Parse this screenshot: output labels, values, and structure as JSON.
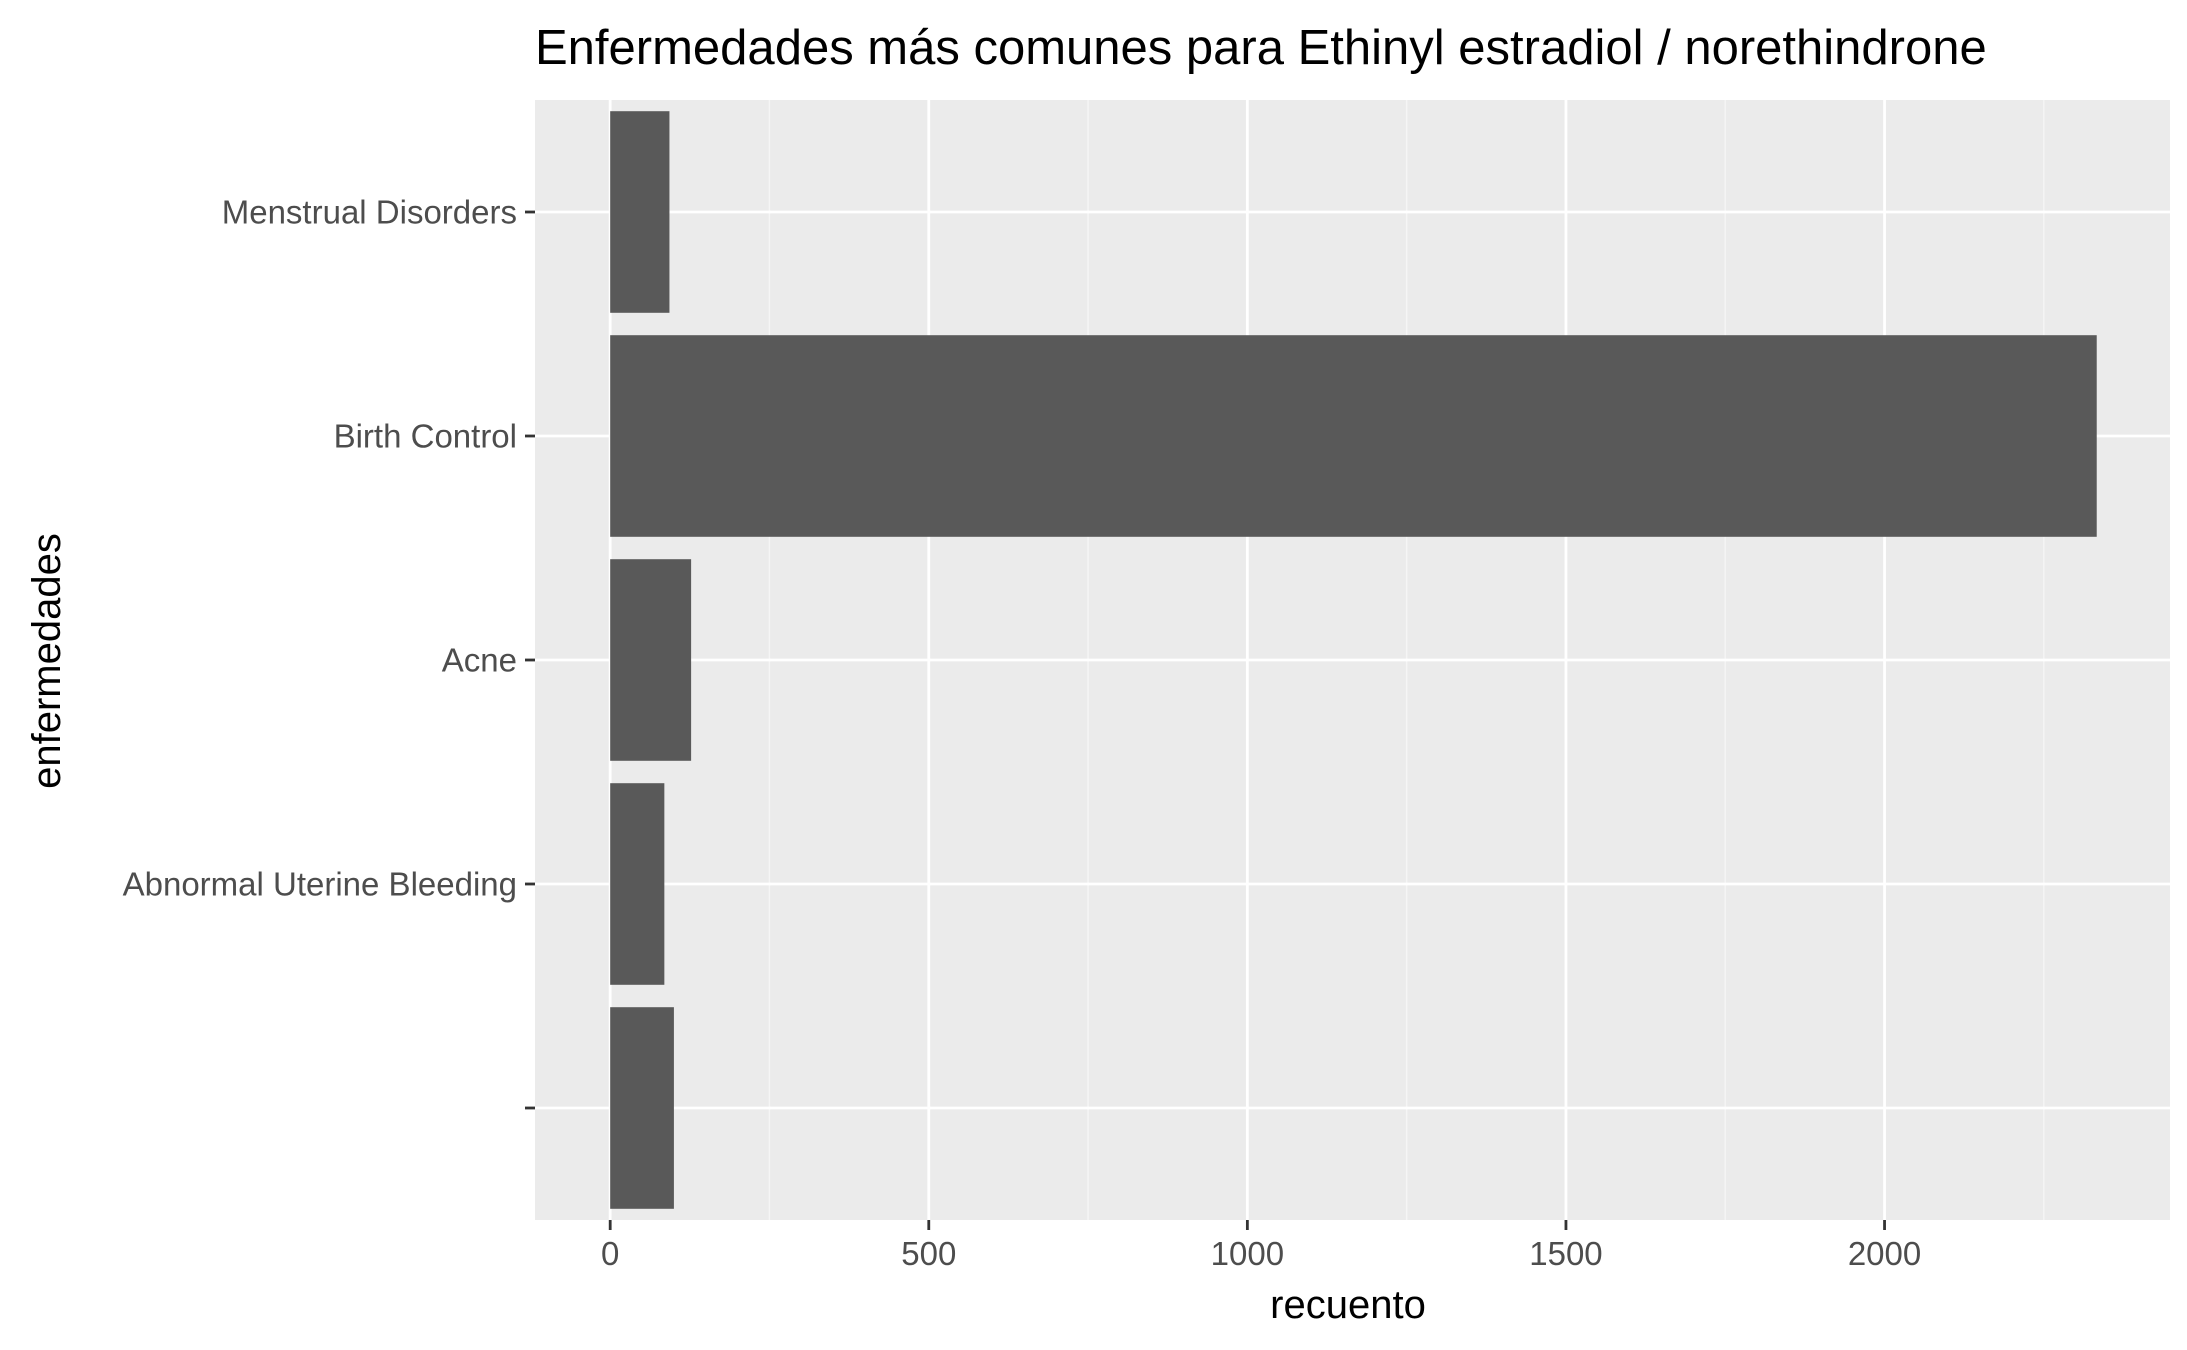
{
  "chart_data": {
    "type": "bar",
    "orientation": "horizontal",
    "title": "Enfermedades más comunes para Ethinyl estradiol / norethindrone",
    "xlabel": "recuento",
    "ylabel": "enfermedades",
    "categories": [
      "",
      "Abnormal Uterine Bleeding",
      "Acne",
      "Birth Control",
      "Menstrual Disorders"
    ],
    "values": [
      100,
      85,
      127,
      2333,
      93
    ],
    "xlim": [
      -118,
      2448
    ],
    "x_ticks": [
      0,
      500,
      1000,
      1500,
      2000
    ],
    "x_tick_labels": [
      "0",
      "500",
      "1000",
      "1500",
      "2000"
    ],
    "grid": true,
    "legend": "none",
    "colors": {
      "bar": "#595959",
      "panel_background": "#ebebeb",
      "grid_major": "#ffffff",
      "grid_minor": "#f5f5f5",
      "tick_label": "#4d4d4d",
      "tick_mark": "#333333"
    }
  }
}
